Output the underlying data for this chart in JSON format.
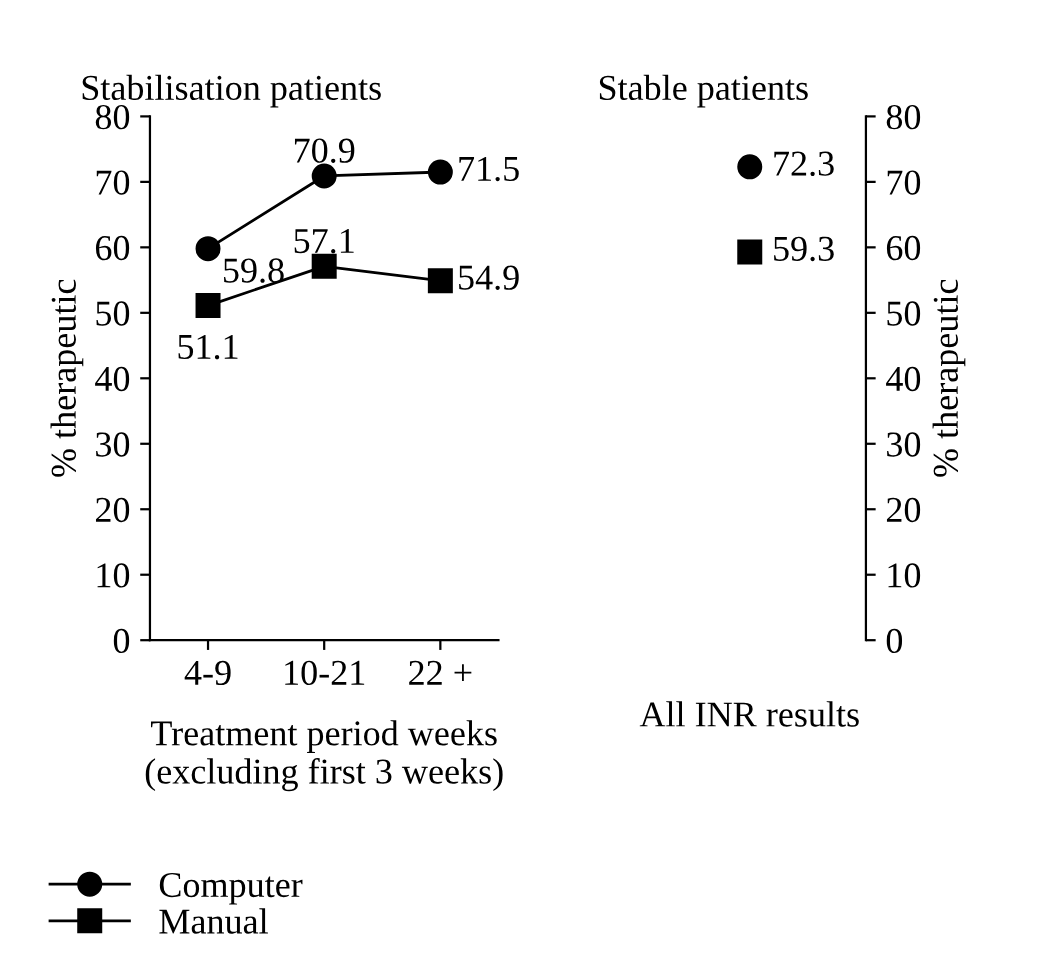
{
  "chart_data": [
    {
      "type": "line",
      "title": "Stabilisation patients",
      "xlabel": "Treatment period weeks\n(excluding first 3 weeks)",
      "ylabel": "% therapeutic",
      "categories": [
        "4-9",
        "10-21",
        "22 +"
      ],
      "series": [
        {
          "name": "Computer",
          "color": "#000000",
          "marker": "circle",
          "values": [
            59.8,
            70.9,
            71.5
          ]
        },
        {
          "name": "Manual",
          "color": "#000000",
          "marker": "square",
          "values": [
            51.1,
            57.1,
            54.9
          ]
        }
      ],
      "ylim": [
        0,
        80
      ],
      "yticks": [
        0,
        10,
        20,
        30,
        40,
        50,
        60,
        70,
        80
      ],
      "data_labels": true,
      "legend": "bottom",
      "grid": false
    },
    {
      "type": "scatter",
      "title": "Stable patients",
      "ylabel": "% therapeutic",
      "categories": [
        "All INR results"
      ],
      "series": [
        {
          "color": "#000000",
          "marker": "circle",
          "values": [
            72.3
          ]
        },
        {
          "color": "#000000",
          "marker": "square",
          "values": [
            59.3
          ]
        }
      ],
      "ylim": [
        0,
        80
      ],
      "yticks": [
        0,
        10,
        20,
        30,
        40,
        50,
        60,
        70,
        80
      ],
      "data_labels": true,
      "grid": false
    }
  ]
}
